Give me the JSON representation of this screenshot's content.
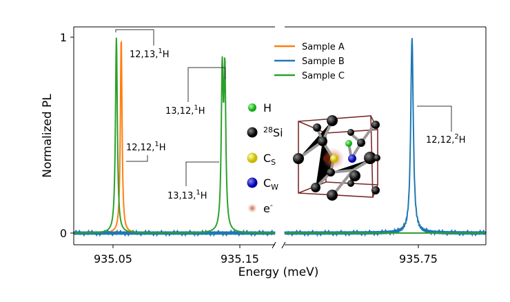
{
  "chart_data": {
    "type": "line",
    "xlabel": "Energy (meV)",
    "ylabel": "Normalized PL",
    "broken_x_axis": true,
    "xlim_left": [
      935.019,
      935.178
    ],
    "xlim_right": [
      935.645,
      935.803
    ],
    "ylim": [
      -0.05,
      1.05
    ],
    "x_ticks": [
      {
        "value": 935.05,
        "label": "935.05",
        "panel": "left"
      },
      {
        "value": 935.15,
        "label": "935.15",
        "panel": "left"
      },
      {
        "value": 935.75,
        "label": "935.75",
        "panel": "right"
      }
    ],
    "y_ticks": [
      {
        "value": 0,
        "label": "0"
      },
      {
        "value": 1,
        "label": "1"
      }
    ],
    "grid": false,
    "legend_position": "top-center",
    "series": [
      {
        "name": "Sample A",
        "color": "#ff7f0e",
        "peaks": [
          {
            "x": 935.0565,
            "height": 1.0,
            "width": 0.0008
          }
        ]
      },
      {
        "name": "Sample B",
        "color": "#1f77b4",
        "peaks": [
          {
            "x": 935.745,
            "height": 1.0,
            "width": 0.0012
          }
        ]
      },
      {
        "name": "Sample C",
        "color": "#2ca02c",
        "peaks": [
          {
            "x": 935.0527,
            "height": 1.0,
            "width": 0.0009
          },
          {
            "x": 935.1363,
            "height": 0.78,
            "width": 0.0009
          },
          {
            "x": 935.1384,
            "height": 0.78,
            "width": 0.0009
          }
        ]
      }
    ],
    "annotations": [
      {
        "prefix": "12,13,",
        "iso": "1",
        "elem": "H"
      },
      {
        "prefix": "13,12,",
        "iso": "1",
        "elem": "H"
      },
      {
        "prefix": "12,12,",
        "iso": "1",
        "elem": "H"
      },
      {
        "prefix": "13,13,",
        "iso": "1",
        "elem": "H"
      },
      {
        "prefix": "12,12,",
        "iso": "2",
        "elem": "H"
      }
    ]
  },
  "atom_legend": [
    {
      "label": "H",
      "color": "#22cc22"
    },
    {
      "sup": "28",
      "label": "Si",
      "color": "#111111"
    },
    {
      "label": "C",
      "sub": "S",
      "color": "#e6d800"
    },
    {
      "label": "C",
      "sub": "W",
      "color": "#1010dd"
    },
    {
      "label": "e",
      "sup": "-",
      "color": "#d9957a"
    }
  ]
}
